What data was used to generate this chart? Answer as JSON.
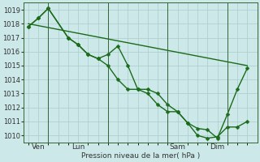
{
  "background_color": "#cce8e8",
  "grid_color": "#aacccc",
  "line_color": "#1a6b1a",
  "marker_color": "#1a6b1a",
  "xlabel": "Pression niveau de la mer( hPa )",
  "ylim": [
    1009.5,
    1019.5
  ],
  "yticks": [
    1010,
    1011,
    1012,
    1013,
    1014,
    1015,
    1016,
    1017,
    1018,
    1019
  ],
  "xtick_labels": [
    "Ven",
    "Lun",
    "Sam",
    "Dim"
  ],
  "vline_positions": [
    8,
    32,
    56,
    80
  ],
  "series1_x": [
    0,
    4,
    8,
    16,
    20,
    24,
    28,
    32,
    36,
    40,
    44,
    48,
    52,
    56,
    60,
    64,
    68,
    72,
    76,
    80,
    84,
    88
  ],
  "series1_y": [
    1017.8,
    1018.4,
    1019.1,
    1017.0,
    1016.5,
    1015.8,
    1015.5,
    1015.8,
    1016.4,
    1015.0,
    1013.3,
    1013.3,
    1013.0,
    1012.2,
    1011.7,
    1010.9,
    1010.0,
    1009.8,
    1009.9,
    1010.6,
    1010.6,
    1011.0
  ],
  "series2_x": [
    0,
    4,
    8,
    16,
    20,
    24,
    28,
    32,
    36,
    40,
    44,
    48,
    52,
    56,
    60,
    64,
    68,
    72,
    76,
    80,
    84,
    88
  ],
  "series2_y": [
    1017.8,
    1018.4,
    1019.1,
    1017.0,
    1016.5,
    1015.8,
    1015.5,
    1015.0,
    1014.0,
    1013.3,
    1013.3,
    1013.0,
    1012.2,
    1011.7,
    1011.7,
    1010.9,
    1010.5,
    1010.4,
    1009.8,
    1011.5,
    1013.3,
    1014.8
  ],
  "series3_x": [
    0,
    88
  ],
  "series3_y": [
    1018.0,
    1015.0
  ],
  "marker_size": 2.5,
  "linewidth": 1.0,
  "xlim": [
    -2,
    92
  ]
}
